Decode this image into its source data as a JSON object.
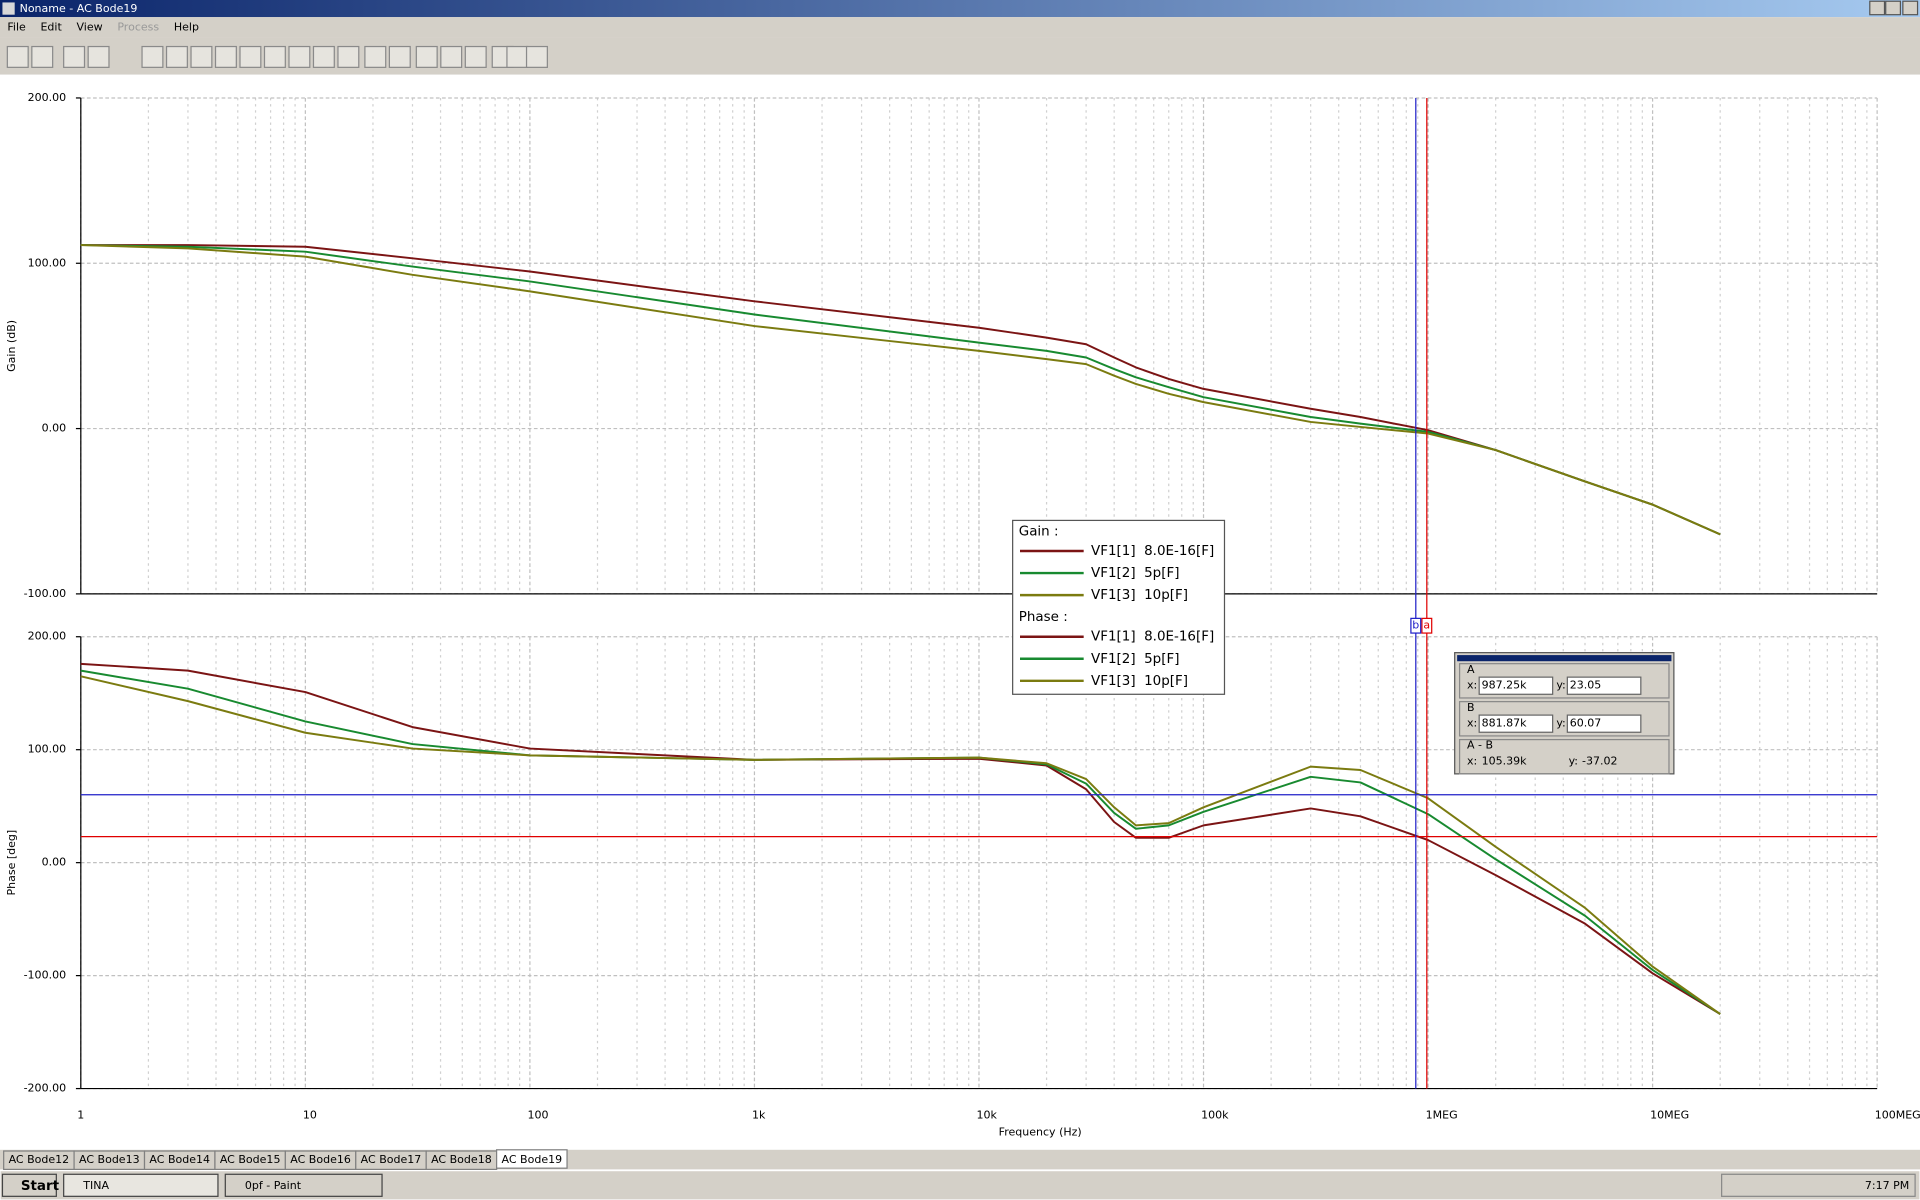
{
  "window": {
    "title": "Noname - AC Bode19",
    "menu": [
      "File",
      "Edit",
      "View",
      "Process",
      "Help"
    ]
  },
  "tabs": [
    "AC Bode12",
    "AC Bode13",
    "AC Bode14",
    "AC Bode15",
    "AC Bode16",
    "AC Bode17",
    "AC Bode18",
    "AC Bode19"
  ],
  "taskbar": {
    "start": "Start",
    "items": [
      "TINA",
      "0pf - Paint"
    ],
    "clock": "7:17 PM"
  },
  "chart_data": [
    {
      "type": "line",
      "ylabel": "Gain (dB)",
      "legend_title": "Gain :",
      "xscale": "log",
      "grid": true,
      "x": [
        1,
        3,
        10,
        30,
        100,
        1000,
        10000,
        20000,
        30000,
        40000,
        50000,
        70000,
        100000,
        300000,
        500000,
        1000000,
        2000000,
        5000000,
        10000000,
        20000000
      ],
      "xlim": [
        1,
        100000000
      ],
      "ylim": [
        -100,
        200
      ],
      "yticks": [
        {
          "value": -100,
          "label": "-100.00"
        },
        {
          "value": 0,
          "label": "0.00"
        },
        {
          "value": 100,
          "label": "100.00"
        },
        {
          "value": 200,
          "label": "200.00"
        }
      ],
      "series": [
        {
          "name": "VF1[1]  8.0E-16[F]",
          "color": "#7b1414",
          "values": [
            111,
            111,
            110,
            103,
            95,
            77,
            61,
            55,
            51,
            43,
            37,
            30,
            24,
            12,
            7,
            -1,
            -13,
            -32,
            -46,
            -64
          ]
        },
        {
          "name": "VF1[2]  5p[F]",
          "color": "#188a30",
          "values": [
            111,
            110,
            107,
            98,
            89,
            69,
            52,
            47,
            43,
            36,
            31,
            25,
            19,
            7,
            3,
            -2,
            -13,
            -32,
            -46,
            -64
          ]
        },
        {
          "name": "VF1[3]  10p[F]",
          "color": "#7b7b10",
          "values": [
            111,
            109,
            104,
            93,
            83,
            62,
            47,
            42,
            39,
            32,
            27,
            21,
            16,
            4,
            1,
            -3,
            -13,
            -32,
            -46,
            -64
          ]
        }
      ]
    },
    {
      "type": "line",
      "ylabel": "Phase [deg]",
      "xlabel": "Frequency (Hz)",
      "legend_title": "Phase :",
      "xscale": "log",
      "grid": true,
      "x": [
        1,
        3,
        10,
        30,
        100,
        1000,
        10000,
        20000,
        30000,
        40000,
        50000,
        70000,
        100000,
        300000,
        500000,
        1000000,
        2000000,
        5000000,
        10000000,
        20000000
      ],
      "xlim": [
        1,
        100000000
      ],
      "ylim": [
        -200,
        200
      ],
      "xticks": [
        1,
        10,
        100,
        {
          "value": 1000,
          "label": "1k"
        },
        {
          "value": 10000,
          "label": "10k"
        },
        {
          "value": 100000,
          "label": "100k"
        },
        {
          "value": 1000000,
          "label": "1MEG"
        },
        {
          "value": 10000000,
          "label": "10MEG"
        },
        {
          "value": 100000000,
          "label": "100MEG"
        }
      ],
      "yticks": [
        {
          "value": -200,
          "label": "-200.00"
        },
        {
          "value": -100,
          "label": "-100.00"
        },
        {
          "value": 0,
          "label": "0.00"
        },
        {
          "value": 100,
          "label": "100.00"
        },
        {
          "value": 200,
          "label": "200.00"
        }
      ],
      "series": [
        {
          "name": "VF1[1]  8.0E-16[F]",
          "color": "#7b1414",
          "values": [
            176,
            170,
            151,
            120,
            101,
            91,
            92,
            86,
            65,
            36,
            22,
            22,
            33,
            48,
            41,
            20,
            -11,
            -54,
            -98,
            -134
          ]
        },
        {
          "name": "VF1[2]  5p[F]",
          "color": "#188a30",
          "values": [
            170,
            154,
            125,
            105,
            95,
            91,
            93,
            87,
            70,
            44,
            30,
            33,
            45,
            76,
            71,
            43,
            3,
            -47,
            -95,
            -134
          ]
        },
        {
          "name": "VF1[3]  10p[F]",
          "color": "#7b7b10",
          "values": [
            165,
            143,
            115,
            101,
            95,
            91,
            93,
            88,
            74,
            49,
            33,
            35,
            49,
            85,
            82,
            57,
            14,
            -40,
            -92,
            -134
          ]
        }
      ],
      "cursors": [
        {
          "name": "a",
          "title": "A",
          "color": "#e00000",
          "x": 987250,
          "y": 23.05,
          "x_label": "987.25k",
          "y_label": "23.05"
        },
        {
          "name": "b",
          "title": "B",
          "color": "#2020c8",
          "x": 881870,
          "y": 60.07,
          "x_label": "881.87k",
          "y_label": "60.07"
        }
      ],
      "readout": {
        "x_prefix": "x:",
        "y_prefix": "y:",
        "diff_title": "A - B",
        "diff_x": "105.39k",
        "diff_y": "-37.02"
      }
    }
  ]
}
